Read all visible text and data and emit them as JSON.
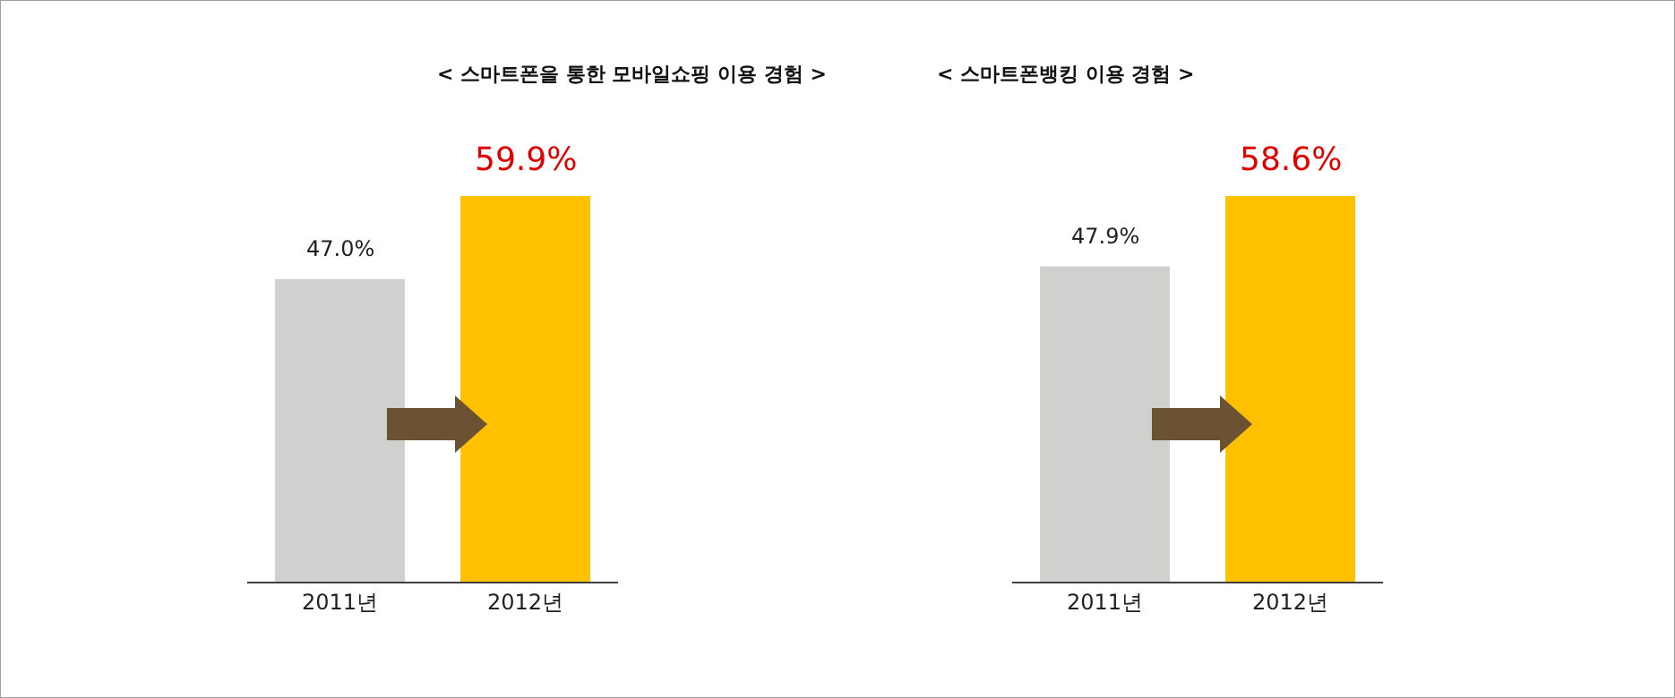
{
  "chart_data": [
    {
      "type": "bar",
      "title": "< 스마트폰을 통한 모바일쇼핑 이용 경험 >",
      "categories": [
        "2011년",
        "2012년"
      ],
      "values": [
        47.0,
        59.9
      ],
      "colors": [
        "#d0d0ce",
        "#ffc000"
      ],
      "value_labels": [
        "47.0%",
        "59.9%"
      ]
    },
    {
      "type": "bar",
      "title": "< 스마트폰뱅킹 이용 경험 >",
      "categories": [
        "2011년",
        "2012년"
      ],
      "values": [
        47.9,
        58.6
      ],
      "colors": [
        "#d0d0ce",
        "#ffc000"
      ],
      "value_labels": [
        "47.9%",
        "58.6%"
      ]
    }
  ]
}
